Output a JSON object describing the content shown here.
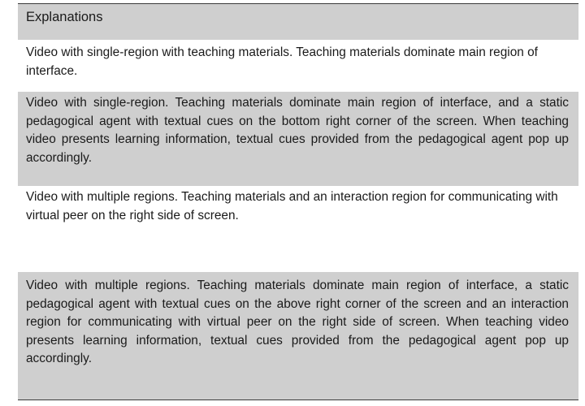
{
  "table": {
    "header": "Explanations",
    "rows": [
      "Video with single-region with teaching materials.  Teaching materials dominate main region of interface.",
      "Video with single-region. Teaching materials dominate main region of interface, and a static pedagogical agent with textual cues on the bottom right corner of the screen. When teaching video presents learning information, textual cues provided from the pedagogical agent pop up accordingly.",
      "Video with multiple regions. Teaching materials and an interaction region for communicating with virtual peer on the right side of screen.",
      "Video with multiple regions. Teaching materials dominate main region of interface, a static pedagogical agent with textual cues on the above right corner of the screen and an interaction region for communicating with virtual peer on the right side of screen. When teaching video presents learning information, textual cues provided from the pedagogical agent pop up accordingly."
    ]
  }
}
